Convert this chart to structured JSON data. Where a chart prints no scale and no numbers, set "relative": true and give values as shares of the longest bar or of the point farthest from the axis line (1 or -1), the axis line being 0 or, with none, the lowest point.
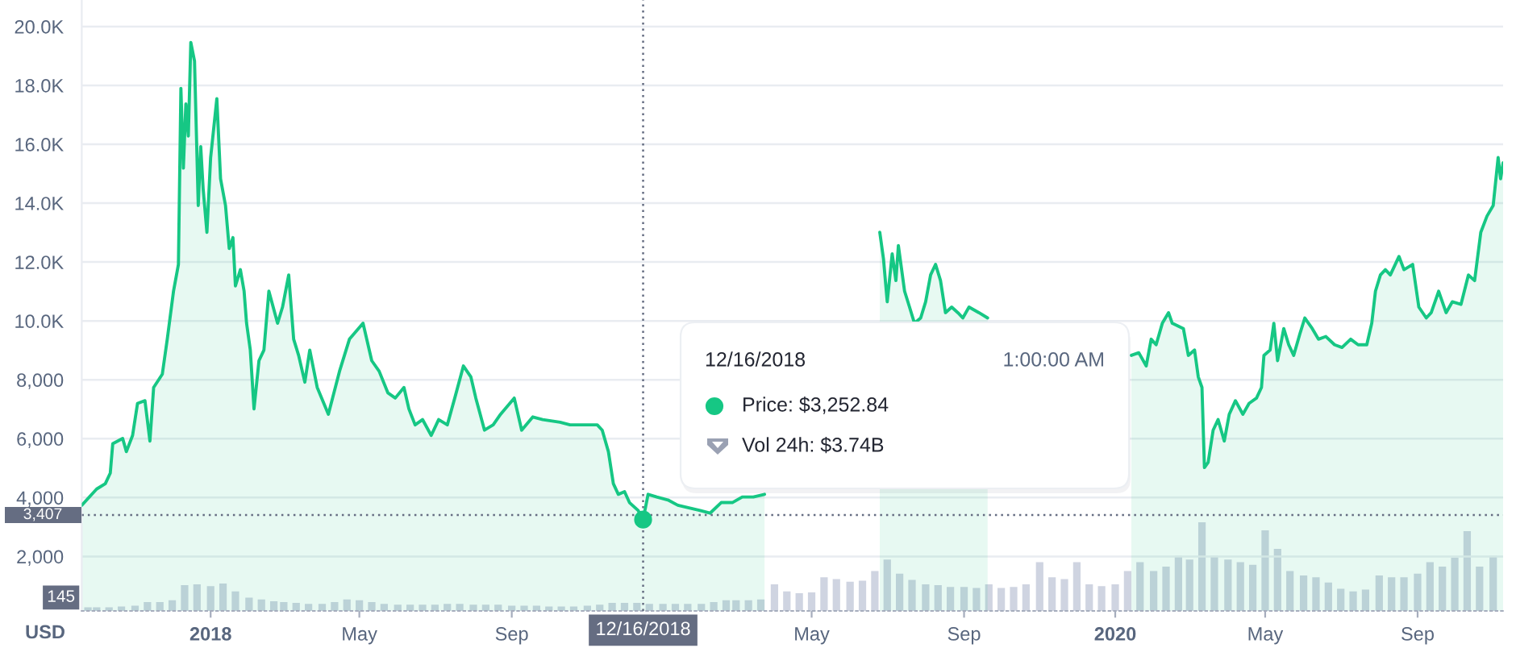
{
  "chart_data": [
    {
      "type": "area",
      "ylabel": "USD",
      "color": "#16c784",
      "x": [
        "2017-09-19",
        "2017-10-01",
        "2017-10-08",
        "2017-10-12",
        "2017-10-14",
        "2017-10-22",
        "2017-10-25",
        "2017-10-30",
        "2017-11-03",
        "2017-11-09",
        "2017-11-13",
        "2017-11-16",
        "2017-11-23",
        "2017-11-27",
        "2017-12-02",
        "2017-12-06",
        "2017-12-08",
        "2017-12-10",
        "2017-12-12",
        "2017-12-14",
        "2017-12-16",
        "2017-12-19",
        "2017-12-22",
        "2017-12-24",
        "2017-12-26",
        "2017-12-29",
        "2018-01-01",
        "2018-01-06",
        "2018-01-09",
        "2018-01-13",
        "2018-01-16",
        "2018-01-19",
        "2018-01-21",
        "2018-01-25",
        "2018-01-28",
        "2018-01-30",
        "2018-02-02",
        "2018-02-05",
        "2018-02-09",
        "2018-02-13",
        "2018-02-17",
        "2018-02-24",
        "2018-02-28",
        "2018-03-05",
        "2018-03-09",
        "2018-03-13",
        "2018-03-18",
        "2018-03-22",
        "2018-03-28",
        "2018-04-06",
        "2018-04-15",
        "2018-04-23",
        "2018-05-04",
        "2018-05-11",
        "2018-05-17",
        "2018-05-24",
        "2018-05-30",
        "2018-06-06",
        "2018-06-10",
        "2018-06-15",
        "2018-06-21",
        "2018-06-28",
        "2018-07-04",
        "2018-07-11",
        "2018-07-17",
        "2018-07-24",
        "2018-07-30",
        "2018-08-03",
        "2018-08-10",
        "2018-08-17",
        "2018-08-23",
        "2018-09-03",
        "2018-09-09",
        "2018-09-18",
        "2018-09-26",
        "2018-10-10",
        "2018-10-18",
        "2018-10-31",
        "2018-11-09",
        "2018-11-13",
        "2018-11-18",
        "2018-11-22",
        "2018-11-26",
        "2018-12-01",
        "2018-12-05",
        "2018-12-12",
        "2018-12-16",
        "2018-12-20",
        "2018-12-27",
        "2019-01-05",
        "2019-01-13",
        "2019-01-22",
        "2019-01-31",
        "2019-02-08",
        "2019-02-17",
        "2019-02-26",
        "2019-03-06",
        "2019-03-15",
        "2019-03-24",
        "2019-05-01",
        "2019-06-25",
        "2019-06-28",
        "2019-07-01",
        "2019-07-05",
        "2019-07-08",
        "2019-07-10",
        "2019-07-15",
        "2019-07-19",
        "2019-07-23",
        "2019-07-28",
        "2019-08-01",
        "2019-08-05",
        "2019-08-09",
        "2019-08-13",
        "2019-08-17",
        "2019-08-22",
        "2019-08-27",
        "2019-08-31",
        "2019-09-05",
        "2019-09-13",
        "2019-09-20",
        "2019-11-15",
        "2020-01-14",
        "2020-01-20",
        "2020-01-26",
        "2020-01-30",
        "2020-02-03",
        "2020-02-08",
        "2020-02-13",
        "2020-02-16",
        "2020-02-25",
        "2020-02-29",
        "2020-03-05",
        "2020-03-08",
        "2020-03-11",
        "2020-03-13",
        "2020-03-16",
        "2020-03-20",
        "2020-03-24",
        "2020-03-29",
        "2020-04-02",
        "2020-04-07",
        "2020-04-13",
        "2020-04-18",
        "2020-04-24",
        "2020-04-28",
        "2020-04-30",
        "2020-05-05",
        "2020-05-08",
        "2020-05-11",
        "2020-05-16",
        "2020-05-20",
        "2020-05-24",
        "2020-05-29",
        "2020-06-02",
        "2020-06-08",
        "2020-06-13",
        "2020-06-19",
        "2020-06-26",
        "2020-07-02",
        "2020-07-09",
        "2020-07-15",
        "2020-07-22",
        "2020-07-26",
        "2020-07-29",
        "2020-08-02",
        "2020-08-06",
        "2020-08-10",
        "2020-08-17",
        "2020-08-21",
        "2020-08-28",
        "2020-09-02",
        "2020-09-08",
        "2020-09-12",
        "2020-09-18",
        "2020-09-24",
        "2020-09-29",
        "2020-10-06",
        "2020-10-12",
        "2020-10-17",
        "2020-10-22",
        "2020-10-27",
        "2020-11-01",
        "2020-11-05",
        "2020-11-07",
        "2020-11-09"
      ],
      "values": [
        3740,
        4290,
        4470,
        4830,
        5830,
        6010,
        5560,
        6110,
        7200,
        7290,
        5920,
        7740,
        8190,
        9380,
        11000,
        11920,
        17900,
        15190,
        17370,
        16280,
        19460,
        18820,
        13920,
        15920,
        14460,
        13010,
        15550,
        17550,
        14830,
        13920,
        12460,
        12830,
        11190,
        11740,
        11010,
        9920,
        9010,
        7010,
        8650,
        9010,
        11010,
        9920,
        10470,
        11560,
        9380,
        8830,
        7920,
        9010,
        7740,
        6830,
        8290,
        9380,
        9920,
        8650,
        8290,
        7560,
        7380,
        7740,
        7010,
        6470,
        6650,
        6110,
        6650,
        6470,
        7380,
        8470,
        8100,
        7380,
        6290,
        6470,
        6830,
        7380,
        6290,
        6740,
        6650,
        6560,
        6470,
        6470,
        6470,
        6290,
        5560,
        4470,
        4110,
        4200,
        3830,
        3560,
        3252.84,
        4110,
        4020,
        3920,
        3740,
        3650,
        3560,
        3470,
        3830,
        3830,
        4020,
        4020,
        4110,
        null,
        13010,
        12100,
        10650,
        12280,
        11370,
        12560,
        11010,
        10470,
        9920,
        10100,
        10650,
        11560,
        11920,
        11370,
        10280,
        10470,
        10280,
        10100,
        10470,
        10280,
        10100,
        null,
        8830,
        8920,
        8470,
        9380,
        9190,
        9920,
        10280,
        9920,
        9740,
        8830,
        9010,
        8100,
        7740,
        5020,
        5200,
        6290,
        6650,
        5920,
        6830,
        7290,
        6830,
        7200,
        7380,
        7740,
        8830,
        9010,
        9920,
        8650,
        9740,
        9190,
        8830,
        9560,
        10100,
        9740,
        9380,
        9470,
        9190,
        9100,
        9380,
        9190,
        9190,
        9920,
        11010,
        11560,
        11740,
        11560,
        12190,
        11740,
        11920,
        10470,
        10100,
        10280,
        11010,
        10280,
        10650,
        10560,
        11560,
        11370,
        13010,
        13560,
        13920,
        15550,
        14830,
        15370
      ],
      "xlim": [
        "2017-09-19",
        "2020-11-09"
      ],
      "ylim": [
        150,
        20900
      ],
      "xticks": [
        {
          "value": "2018-01-01",
          "label": "2018"
        },
        {
          "value": "2018-05-01",
          "label": "May"
        },
        {
          "value": "2018-09-01",
          "label": "Sep"
        },
        {
          "value": "2019-05-01",
          "label": "May"
        },
        {
          "value": "2019-09-01",
          "label": "Sep"
        },
        {
          "value": "2020-01-01",
          "label": "2020"
        },
        {
          "value": "2020-05-01",
          "label": "May"
        },
        {
          "value": "2020-09-01",
          "label": "Sep"
        }
      ],
      "yticks": [
        {
          "value": 2000,
          "label": "2,000"
        },
        {
          "value": 4000,
          "label": "4,000"
        },
        {
          "value": 6000,
          "label": "6,000"
        },
        {
          "value": 8000,
          "label": "8,000"
        },
        {
          "value": 10000,
          "label": "10.0K"
        },
        {
          "value": 12000,
          "label": "12.0K"
        },
        {
          "value": 14000,
          "label": "14.0K"
        },
        {
          "value": 16000,
          "label": "16.0K"
        },
        {
          "value": 18000,
          "label": "18.0K"
        },
        {
          "value": 20000,
          "label": "20.0K"
        }
      ],
      "grid": "y",
      "ref_lines": [
        {
          "axis": "x",
          "value": "2018-12-16",
          "label": "12/16/2018",
          "color": "#656d82",
          "line_style": "dotted"
        },
        {
          "axis": "y",
          "value": 3407,
          "label": "3,407",
          "color": "#656d82",
          "line_style": "dotted"
        }
      ],
      "annotations": [
        "12/16/2018",
        "1:00:00 AM",
        "Price: $3,252.84",
        "Vol 24h: $3.74B"
      ]
    },
    {
      "type": "bar",
      "relative": true,
      "color": "#cfd4e1",
      "tick_labels": false,
      "xlim": [
        "2017-09-19",
        "2020-11-09"
      ],
      "x": [
        "2017-09-24",
        "2017-10-01",
        "2017-10-11",
        "2017-10-21",
        "2017-11-01",
        "2017-11-11",
        "2017-11-21",
        "2017-12-01",
        "2017-12-11",
        "2017-12-21",
        "2018-01-01",
        "2018-01-11",
        "2018-01-21",
        "2018-02-01",
        "2018-02-11",
        "2018-02-21",
        "2018-03-01",
        "2018-03-11",
        "2018-03-21",
        "2018-04-01",
        "2018-04-11",
        "2018-04-21",
        "2018-05-01",
        "2018-05-11",
        "2018-05-21",
        "2018-06-01",
        "2018-06-11",
        "2018-06-21",
        "2018-07-01",
        "2018-07-11",
        "2018-07-21",
        "2018-08-01",
        "2018-08-11",
        "2018-08-21",
        "2018-09-01",
        "2018-09-11",
        "2018-09-21",
        "2018-10-01",
        "2018-10-11",
        "2018-10-21",
        "2018-11-01",
        "2018-11-11",
        "2018-11-21",
        "2018-12-01",
        "2018-12-11",
        "2018-12-21",
        "2019-01-01",
        "2019-01-11",
        "2019-01-21",
        "2019-02-01",
        "2019-02-11",
        "2019-02-21",
        "2019-03-01",
        "2019-03-11",
        "2019-03-21",
        "2019-04-01",
        "2019-04-11",
        "2019-04-21",
        "2019-05-01",
        "2019-05-11",
        "2019-05-21",
        "2019-06-01",
        "2019-06-11",
        "2019-06-21",
        "2019-07-01",
        "2019-07-11",
        "2019-07-21",
        "2019-08-01",
        "2019-08-11",
        "2019-08-21",
        "2019-09-01",
        "2019-09-11",
        "2019-09-21",
        "2019-10-01",
        "2019-10-11",
        "2019-10-21",
        "2019-11-01",
        "2019-11-11",
        "2019-11-21",
        "2019-12-01",
        "2019-12-11",
        "2019-12-21",
        "2020-01-01",
        "2020-01-11",
        "2020-01-21",
        "2020-02-01",
        "2020-02-11",
        "2020-02-21",
        "2020-03-01",
        "2020-03-11",
        "2020-03-21",
        "2020-04-01",
        "2020-04-11",
        "2020-04-21",
        "2020-05-01",
        "2020-05-11",
        "2020-05-21",
        "2020-06-01",
        "2020-06-11",
        "2020-06-21",
        "2020-07-01",
        "2020-07-11",
        "2020-07-21",
        "2020-08-01",
        "2020-08-11",
        "2020-08-21",
        "2020-09-01",
        "2020-09-11",
        "2020-09-21",
        "2020-10-01",
        "2020-10-11",
        "2020-10-21",
        "2020-11-01"
      ],
      "values": [
        0.04,
        0.04,
        0.04,
        0.05,
        0.06,
        0.1,
        0.1,
        0.12,
        0.29,
        0.3,
        0.28,
        0.31,
        0.22,
        0.15,
        0.13,
        0.11,
        0.1,
        0.09,
        0.08,
        0.08,
        0.1,
        0.13,
        0.12,
        0.1,
        0.08,
        0.07,
        0.07,
        0.07,
        0.07,
        0.08,
        0.08,
        0.07,
        0.07,
        0.07,
        0.06,
        0.06,
        0.06,
        0.05,
        0.05,
        0.05,
        0.06,
        0.07,
        0.09,
        0.09,
        0.09,
        0.08,
        0.08,
        0.08,
        0.08,
        0.08,
        0.1,
        0.12,
        0.12,
        0.12,
        0.13,
        0.3,
        0.22,
        0.2,
        0.21,
        0.38,
        0.36,
        0.33,
        0.34,
        0.45,
        0.58,
        0.42,
        0.35,
        0.3,
        0.29,
        0.27,
        0.27,
        0.26,
        0.3,
        0.26,
        0.27,
        0.3,
        0.55,
        0.38,
        0.36,
        0.55,
        0.3,
        0.28,
        0.3,
        0.45,
        0.55,
        0.45,
        0.5,
        0.62,
        0.58,
        1.0,
        0.62,
        0.58,
        0.55,
        0.52,
        0.91,
        0.7,
        0.45,
        0.4,
        0.38,
        0.32,
        0.25,
        0.22,
        0.24,
        0.4,
        0.38,
        0.38,
        0.42,
        0.55,
        0.5,
        0.6,
        0.9,
        0.5,
        0.62
      ],
      "annotations": [
        "145"
      ]
    }
  ]
}
